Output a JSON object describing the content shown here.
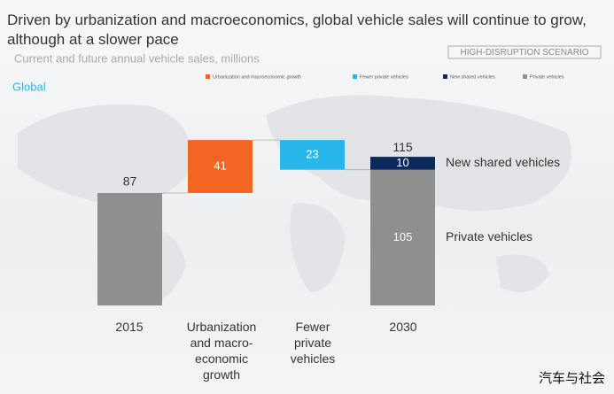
{
  "chart_data": {
    "type": "waterfall",
    "title": "Driven by urbanization and macroeconomics, global vehicle sales will continue to grow, although at a slower pace",
    "subtitle": "Current and future annual vehicle sales, millions",
    "scenario": "HIGH-DISRUPTION SCENARIO",
    "region": "Global",
    "categories": [
      "2015",
      "Urbanization and macro-economic growth",
      "Fewer private vehicles",
      "2030"
    ],
    "series": [
      {
        "name": "Urbanization and macroeconomic growth",
        "color": "#f26522",
        "values": [
          null,
          41,
          null,
          null
        ]
      },
      {
        "name": "Fewer private vehicles",
        "color": "#29b6e8",
        "values": [
          null,
          null,
          -23,
          null
        ],
        "value_labels": [
          null,
          null,
          "23",
          null
        ]
      },
      {
        "name": "New shared vehicles",
        "color": "#0d2a5c",
        "values": [
          null,
          null,
          null,
          10
        ]
      },
      {
        "name": "Private vehicles",
        "color": "#8f8f8f",
        "values": [
          87,
          null,
          null,
          105
        ]
      }
    ],
    "total": 115,
    "watermark": "汽车与社会"
  }
}
